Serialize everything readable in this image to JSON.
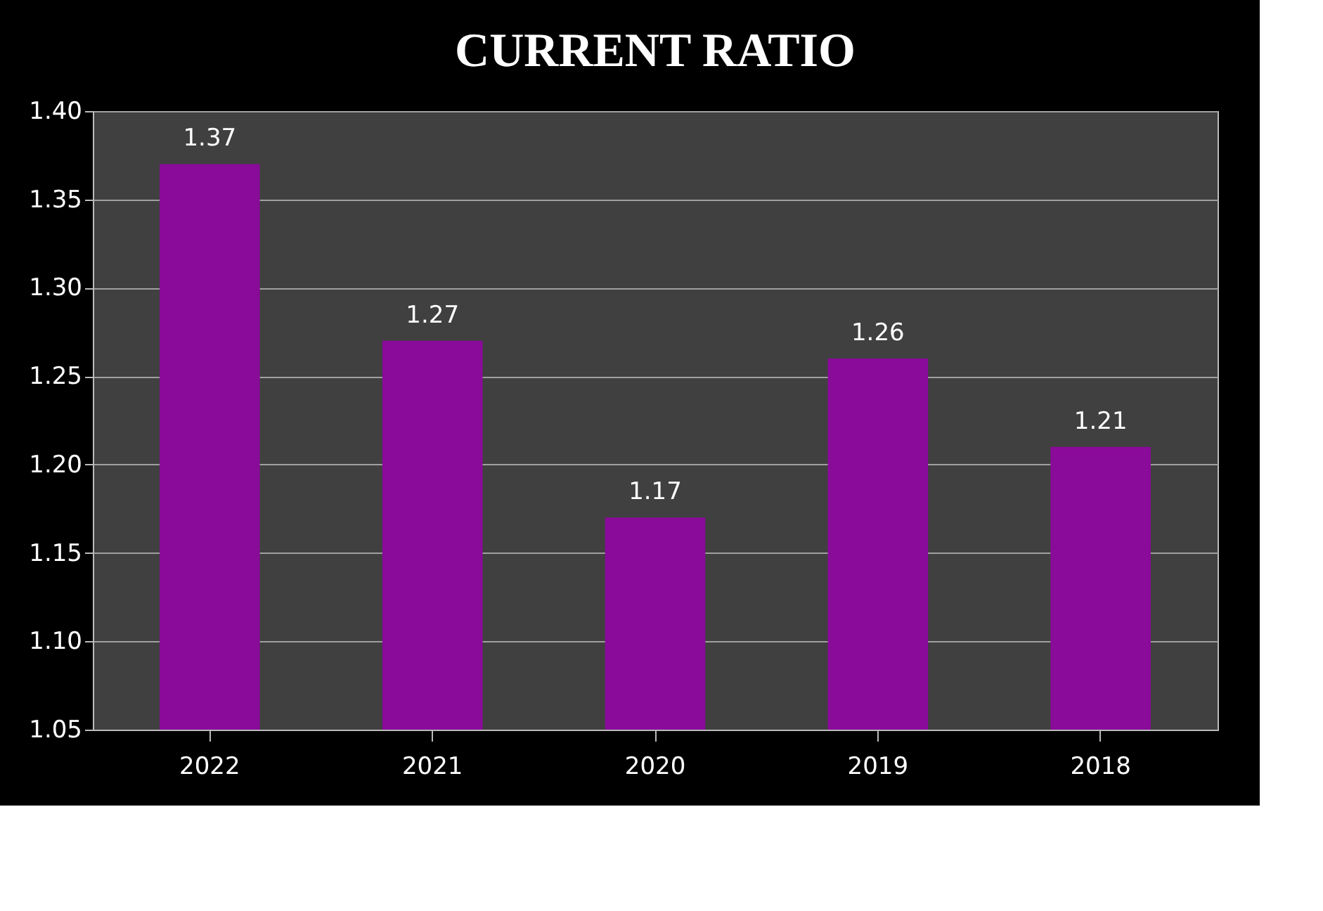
{
  "chart_data": {
    "type": "bar",
    "title": "CURRENT RATIO",
    "categories": [
      "2022",
      "2021",
      "2020",
      "2019",
      "2018"
    ],
    "values": [
      1.37,
      1.27,
      1.17,
      1.26,
      1.21
    ],
    "color": "#8a0a9a",
    "ylim": [
      1.05,
      1.4
    ],
    "yticks": [
      1.05,
      {
        "value": 1.1,
        "label": "1.10"
      },
      1.15,
      {
        "value": 1.2,
        "label": "1.20"
      },
      1.25,
      {
        "value": 1.3,
        "label": "1.30"
      },
      1.35,
      {
        "value": 1.4,
        "label": "1.40"
      }
    ],
    "grid": "y",
    "data_labels": true
  }
}
